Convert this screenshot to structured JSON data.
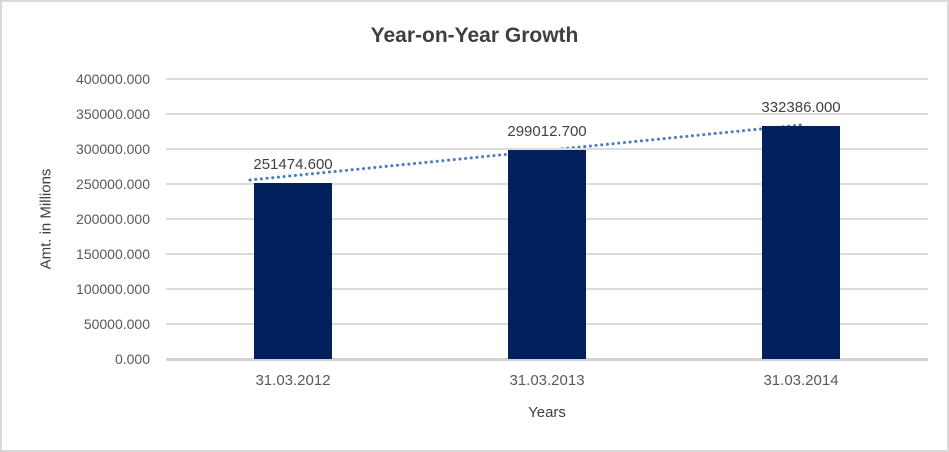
{
  "chart_data": {
    "type": "bar",
    "title": "Year-on-Year Growth",
    "xlabel": "Years",
    "ylabel": "Amt. in Millions",
    "categories": [
      "31.03.2012",
      "31.03.2013",
      "31.03.2014"
    ],
    "values": [
      251474.6,
      299012.7,
      332386.0
    ],
    "data_labels": [
      "251474.600",
      "299012.700",
      "332386.000"
    ],
    "ylim": [
      0,
      400000
    ],
    "ytick_step": 50000,
    "ytick_labels": [
      "0.000",
      "50000.000",
      "100000.000",
      "150000.000",
      "200000.000",
      "250000.000",
      "300000.000",
      "350000.000",
      "400000.000"
    ],
    "grid": true,
    "legend": "none",
    "trendline": {
      "type": "linear",
      "style": "dotted"
    },
    "colors": {
      "bar_fill": "#02215C",
      "trendline": "#4A7EBB",
      "gridline": "#DCDCDC",
      "axis_line": "#D2D2D2",
      "title_text": "#3F3F3F",
      "tick_text": "#595959",
      "label_text": "#404040"
    }
  }
}
